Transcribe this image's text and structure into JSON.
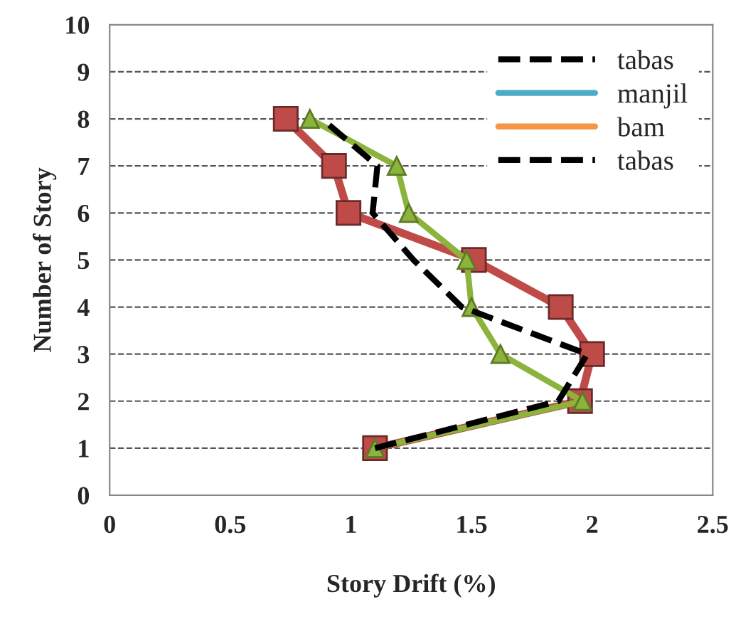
{
  "chart_data": {
    "type": "line",
    "xlabel": "Story Drift (%)",
    "ylabel": "Number of Story",
    "xlim": [
      0,
      2.5
    ],
    "xticks": [
      0,
      0.5,
      1,
      1.5,
      2,
      2.5
    ],
    "ylim": [
      0,
      10
    ],
    "yticks": [
      0,
      1,
      2,
      3,
      4,
      5,
      6,
      7,
      8,
      9,
      10
    ],
    "grid": "y",
    "legend": "top right",
    "series": [
      {
        "name": "tabas",
        "color": "#000000",
        "line_style": "dashed",
        "marker": "none",
        "x": [
          1.1,
          1.86,
          1.98,
          1.46,
          1.26,
          1.09,
          1.11,
          0.88
        ],
        "values": [
          1,
          2,
          3,
          4,
          5,
          6,
          7,
          8
        ]
      },
      {
        "name": "manjil",
        "color": "#4bacc6",
        "line_style": "solid",
        "marker": "none",
        "x": [
          null
        ],
        "values": [
          null
        ]
      },
      {
        "name": "bam",
        "color": "#f79646",
        "line_style": "solid",
        "marker": "none",
        "x": [
          null
        ],
        "values": [
          null
        ]
      },
      {
        "name": "tabas",
        "color": "#000000",
        "line_style": "dashed",
        "marker": "none",
        "x": [
          null
        ],
        "values": [
          null
        ]
      },
      {
        "color": "#be4b48",
        "line_style": "solid",
        "marker": "square",
        "x": [
          1.1,
          1.95,
          2.0,
          1.87,
          1.51,
          0.99,
          0.93,
          0.73
        ],
        "values": [
          1,
          2,
          3,
          4,
          5,
          6,
          7,
          8
        ]
      },
      {
        "color": "#8cb33c",
        "line_style": "solid",
        "marker": "triangle",
        "x": [
          1.1,
          1.96,
          1.62,
          1.5,
          1.48,
          1.24,
          1.19,
          0.83
        ],
        "values": [
          1,
          2,
          3,
          4,
          5,
          6,
          7,
          8
        ]
      }
    ]
  }
}
